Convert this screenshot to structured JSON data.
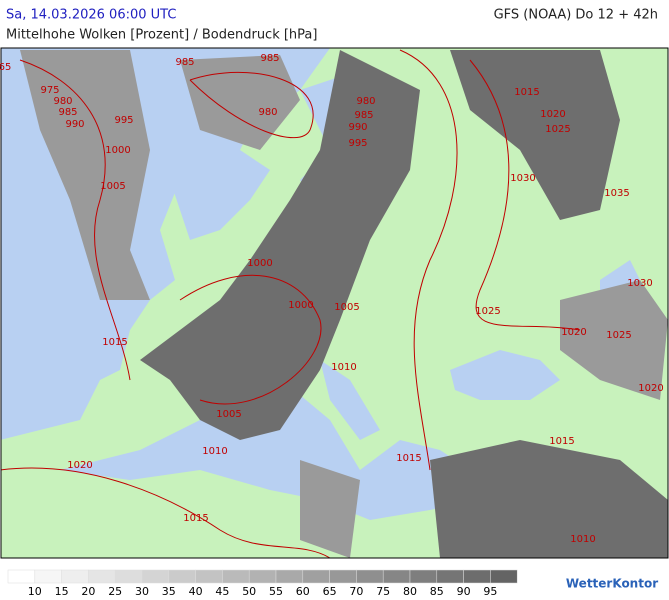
{
  "header": {
    "date": "Sa, 14.03.2026 06:00 UTC",
    "model": "GFS (NOAA) Do 12 + 42h",
    "subtitle": "Mittelhohe Wolken [Prozent] / Bodendruck [hPa]"
  },
  "isobar_labels": [
    "65",
    "975",
    "980",
    "985",
    "990",
    "995",
    "1000",
    "1005",
    "985",
    "985",
    "980",
    "980",
    "985",
    "990",
    "995",
    "1000",
    "1000",
    "1005",
    "1010",
    "1015",
    "1005",
    "1010",
    "1020",
    "1015",
    "1015",
    "1015",
    "1010",
    "1015",
    "1020",
    "1025",
    "1030",
    "1035",
    "1030",
    "1025",
    "1020",
    "1025",
    "1020"
  ],
  "legend": {
    "labels": [
      10,
      15,
      20,
      25,
      30,
      35,
      40,
      45,
      50,
      55,
      60,
      65,
      70,
      75,
      80,
      85,
      90,
      95
    ]
  },
  "logo": "WetterKontor"
}
